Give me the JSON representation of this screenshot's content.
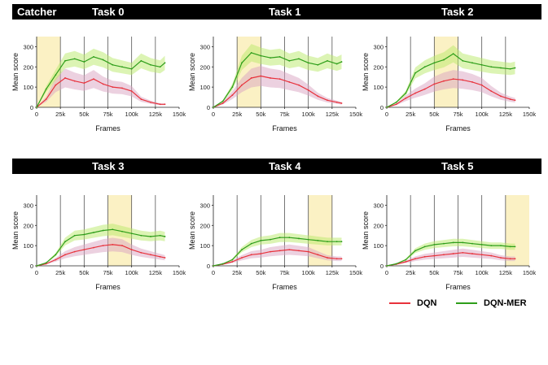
{
  "header": {
    "figure_label": "Catcher"
  },
  "legend": {
    "items": [
      {
        "label": "DQN",
        "color": "#e8323c"
      },
      {
        "label": "DQN-MER",
        "color": "#2e9e1a"
      }
    ]
  },
  "chart_data": [
    {
      "type": "line",
      "title": "Task 0",
      "xlabel": "Frames",
      "ylabel": "Mean score",
      "xlim": [
        0,
        150000
      ],
      "ylim": [
        0,
        350
      ],
      "xticks": [
        "0",
        "25k",
        "50k",
        "75k",
        "100k",
        "125k",
        "150k"
      ],
      "yticks": [
        "0",
        "100",
        "200",
        "300"
      ],
      "highlight": [
        0,
        25000
      ],
      "task_boundaries": [
        25000,
        50000,
        75000,
        100000,
        125000
      ],
      "x": [
        0,
        10000,
        20000,
        30000,
        40000,
        50000,
        60000,
        70000,
        80000,
        90000,
        100000,
        110000,
        120000,
        130000,
        135000
      ],
      "series": [
        {
          "name": "DQN",
          "color": "#e8323c",
          "values": [
            0,
            40,
            110,
            145,
            130,
            120,
            140,
            115,
            100,
            95,
            80,
            40,
            25,
            15,
            15
          ]
        },
        {
          "name": "DQN-MER",
          "color": "#2e9e1a",
          "values": [
            0,
            90,
            160,
            230,
            240,
            225,
            250,
            235,
            210,
            200,
            190,
            230,
            210,
            200,
            220
          ]
        }
      ]
    },
    {
      "type": "line",
      "title": "Task 1",
      "xlabel": "Frames",
      "ylabel": "Mean score",
      "xlim": [
        0,
        150000
      ],
      "ylim": [
        0,
        350
      ],
      "xticks": [
        "0",
        "25k",
        "50k",
        "75k",
        "100k",
        "125k",
        "150k"
      ],
      "yticks": [
        "0",
        "100",
        "200",
        "300"
      ],
      "highlight": [
        25000,
        50000
      ],
      "task_boundaries": [
        25000,
        50000,
        75000,
        100000,
        125000
      ],
      "x": [
        0,
        10000,
        20000,
        30000,
        40000,
        50000,
        60000,
        70000,
        80000,
        90000,
        100000,
        110000,
        120000,
        130000,
        135000
      ],
      "series": [
        {
          "name": "DQN",
          "color": "#e8323c",
          "values": [
            0,
            20,
            60,
            110,
            145,
            155,
            145,
            140,
            125,
            110,
            85,
            55,
            35,
            25,
            20
          ]
        },
        {
          "name": "DQN-MER",
          "color": "#2e9e1a",
          "values": [
            0,
            30,
            100,
            220,
            270,
            255,
            245,
            250,
            230,
            240,
            220,
            210,
            230,
            215,
            225
          ]
        }
      ]
    },
    {
      "type": "line",
      "title": "Task 2",
      "xlabel": "Frames",
      "ylabel": "Mean score",
      "xlim": [
        0,
        150000
      ],
      "ylim": [
        0,
        350
      ],
      "xticks": [
        "0",
        "25k",
        "50k",
        "75k",
        "100k",
        "125k",
        "150k"
      ],
      "yticks": [
        "0",
        "100",
        "200",
        "300"
      ],
      "highlight": [
        50000,
        75000
      ],
      "task_boundaries": [
        25000,
        50000,
        75000,
        100000,
        125000
      ],
      "x": [
        0,
        10000,
        20000,
        30000,
        40000,
        50000,
        60000,
        70000,
        80000,
        90000,
        100000,
        110000,
        120000,
        130000,
        135000
      ],
      "series": [
        {
          "name": "DQN",
          "color": "#e8323c",
          "values": [
            0,
            15,
            45,
            70,
            90,
            115,
            130,
            140,
            135,
            125,
            110,
            80,
            55,
            40,
            35
          ]
        },
        {
          "name": "DQN-MER",
          "color": "#2e9e1a",
          "values": [
            0,
            25,
            70,
            170,
            200,
            220,
            235,
            265,
            230,
            220,
            210,
            200,
            195,
            190,
            195
          ]
        }
      ]
    },
    {
      "type": "line",
      "title": "Task 3",
      "xlabel": "Frames",
      "ylabel": "Mean score",
      "xlim": [
        0,
        150000
      ],
      "ylim": [
        0,
        350
      ],
      "xticks": [
        "0",
        "25k",
        "50k",
        "75k",
        "100k",
        "125k",
        "150k"
      ],
      "yticks": [
        "0",
        "100",
        "200",
        "300"
      ],
      "highlight": [
        75000,
        100000
      ],
      "task_boundaries": [
        25000,
        50000,
        75000,
        100000,
        125000
      ],
      "x": [
        0,
        10000,
        20000,
        30000,
        40000,
        50000,
        60000,
        70000,
        80000,
        90000,
        100000,
        110000,
        120000,
        130000,
        135000
      ],
      "series": [
        {
          "name": "DQN",
          "color": "#e8323c",
          "values": [
            0,
            10,
            30,
            55,
            70,
            80,
            90,
            100,
            105,
            100,
            80,
            65,
            55,
            45,
            40
          ]
        },
        {
          "name": "DQN-MER",
          "color": "#2e9e1a",
          "values": [
            0,
            15,
            55,
            120,
            150,
            155,
            165,
            175,
            180,
            170,
            160,
            150,
            145,
            150,
            145
          ]
        }
      ]
    },
    {
      "type": "line",
      "title": "Task 4",
      "xlabel": "Frames",
      "ylabel": "Mean score",
      "xlim": [
        0,
        150000
      ],
      "ylim": [
        0,
        350
      ],
      "xticks": [
        "0",
        "25k",
        "50k",
        "75k",
        "100k",
        "125k",
        "150k"
      ],
      "yticks": [
        "0",
        "100",
        "200",
        "300"
      ],
      "highlight": [
        100000,
        125000
      ],
      "task_boundaries": [
        25000,
        50000,
        75000,
        100000,
        125000
      ],
      "x": [
        0,
        10000,
        20000,
        30000,
        40000,
        50000,
        60000,
        70000,
        80000,
        90000,
        100000,
        110000,
        120000,
        130000,
        135000
      ],
      "series": [
        {
          "name": "DQN",
          "color": "#e8323c",
          "values": [
            0,
            8,
            20,
            40,
            55,
            60,
            70,
            75,
            80,
            75,
            70,
            55,
            40,
            35,
            35
          ]
        },
        {
          "name": "DQN-MER",
          "color": "#2e9e1a",
          "values": [
            0,
            10,
            30,
            80,
            110,
            125,
            130,
            140,
            140,
            135,
            130,
            125,
            120,
            120,
            120
          ]
        }
      ]
    },
    {
      "type": "line",
      "title": "Task 5",
      "xlabel": "Frames",
      "ylabel": "Mean score",
      "xlim": [
        0,
        150000
      ],
      "ylim": [
        0,
        350
      ],
      "xticks": [
        "0",
        "25k",
        "50k",
        "75k",
        "100k",
        "125k",
        "150k"
      ],
      "yticks": [
        "0",
        "100",
        "200",
        "300"
      ],
      "highlight": [
        125000,
        150000
      ],
      "task_boundaries": [
        25000,
        50000,
        75000,
        100000,
        125000
      ],
      "x": [
        0,
        10000,
        20000,
        30000,
        40000,
        50000,
        60000,
        70000,
        80000,
        90000,
        100000,
        110000,
        120000,
        130000,
        135000
      ],
      "series": [
        {
          "name": "DQN",
          "color": "#e8323c",
          "values": [
            0,
            8,
            20,
            35,
            45,
            50,
            55,
            60,
            65,
            60,
            55,
            50,
            40,
            35,
            35
          ]
        },
        {
          "name": "DQN-MER",
          "color": "#2e9e1a",
          "values": [
            0,
            10,
            30,
            75,
            95,
            105,
            110,
            115,
            115,
            110,
            105,
            100,
            100,
            95,
            95
          ]
        }
      ]
    }
  ]
}
